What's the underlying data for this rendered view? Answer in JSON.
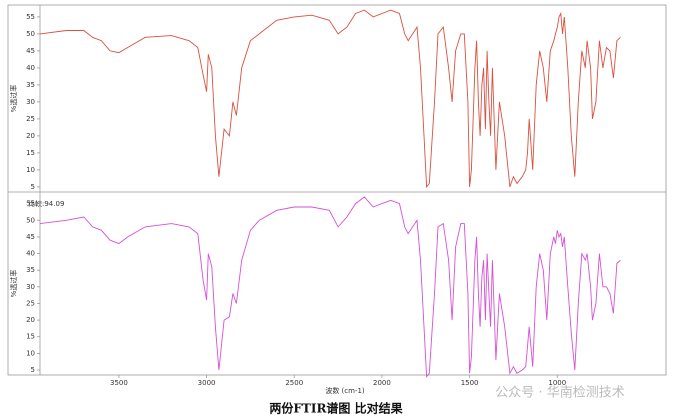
{
  "chart_data": [
    {
      "type": "line",
      "ylabel": "%透过率",
      "x": [
        3950,
        3800,
        3700,
        3650,
        3600,
        3550,
        3500,
        3450,
        3350,
        3200,
        3100,
        3050,
        3020,
        3000,
        2990,
        2970,
        2950,
        2930,
        2900,
        2870,
        2850,
        2830,
        2800,
        2750,
        2700,
        2600,
        2500,
        2400,
        2300,
        2250,
        2200,
        2150,
        2100,
        2050,
        2000,
        1950,
        1900,
        1870,
        1850,
        1800,
        1780,
        1760,
        1745,
        1730,
        1700,
        1680,
        1650,
        1620,
        1600,
        1580,
        1550,
        1530,
        1510,
        1500,
        1490,
        1470,
        1460,
        1450,
        1440,
        1430,
        1420,
        1410,
        1400,
        1390,
        1380,
        1370,
        1350,
        1330,
        1300,
        1270,
        1250,
        1230,
        1200,
        1180,
        1170,
        1160,
        1140,
        1120,
        1100,
        1080,
        1060,
        1040,
        1020,
        1010,
        1000,
        990,
        980,
        970,
        960,
        940,
        920,
        900,
        880,
        860,
        840,
        830,
        810,
        800,
        780,
        760,
        740,
        720,
        700,
        680,
        660,
        640
      ],
      "series": [
        {
          "color": "#d9503f",
          "values": [
            50,
            51,
            51,
            49,
            48,
            45,
            44.5,
            46,
            49,
            49.5,
            48,
            46,
            38,
            33,
            44,
            40,
            20,
            8,
            22,
            20,
            30,
            26,
            40,
            48,
            50,
            54,
            55,
            55.5,
            54,
            50,
            52,
            56,
            57,
            55,
            56,
            57,
            56,
            50,
            48,
            52,
            40,
            20,
            5,
            6,
            30,
            50,
            52,
            40,
            30,
            45,
            50,
            50,
            30,
            5,
            10,
            40,
            48,
            30,
            20,
            35,
            40,
            22,
            45,
            30,
            20,
            40,
            10,
            30,
            20,
            5,
            8,
            6,
            8,
            10,
            15,
            25,
            10,
            35,
            45,
            40,
            30,
            45,
            48,
            50,
            52,
            55,
            56,
            50,
            55,
            40,
            20,
            8,
            30,
            45,
            40,
            48,
            40,
            25,
            30,
            48,
            40,
            46,
            45,
            37,
            48,
            49
          ]
        }
      ],
      "ylim": [
        3.5,
        58.5
      ],
      "yticks": [
        5,
        10,
        15,
        20,
        25,
        30,
        35,
        40,
        45,
        50,
        55
      ],
      "xlim": [
        3950,
        380
      ]
    },
    {
      "type": "line",
      "ylabel": "%透过率",
      "annotation": "比較:94.09",
      "xlabel": "波数 (cm-1)",
      "x": [
        3950,
        3800,
        3700,
        3650,
        3600,
        3550,
        3500,
        3450,
        3350,
        3200,
        3100,
        3050,
        3020,
        3000,
        2990,
        2970,
        2950,
        2930,
        2900,
        2870,
        2850,
        2830,
        2800,
        2750,
        2700,
        2600,
        2500,
        2400,
        2300,
        2250,
        2200,
        2150,
        2100,
        2050,
        2000,
        1950,
        1900,
        1870,
        1850,
        1800,
        1780,
        1760,
        1745,
        1730,
        1700,
        1680,
        1650,
        1620,
        1600,
        1580,
        1550,
        1530,
        1510,
        1500,
        1490,
        1470,
        1460,
        1450,
        1440,
        1430,
        1420,
        1410,
        1400,
        1390,
        1380,
        1370,
        1350,
        1330,
        1300,
        1270,
        1250,
        1230,
        1200,
        1180,
        1170,
        1160,
        1140,
        1120,
        1100,
        1080,
        1060,
        1040,
        1020,
        1010,
        1000,
        990,
        980,
        970,
        960,
        940,
        920,
        900,
        880,
        860,
        840,
        830,
        810,
        800,
        780,
        760,
        740,
        720,
        700,
        680,
        660,
        640
      ],
      "series": [
        {
          "color": "#d650d8",
          "values": [
            49,
            50,
            51,
            48,
            47,
            44,
            43,
            45,
            48,
            49,
            48,
            46,
            32,
            26,
            40,
            36,
            18,
            5,
            20,
            21,
            28,
            25,
            38,
            47,
            50,
            53,
            54,
            54,
            53,
            48,
            51,
            55,
            57,
            54,
            55,
            56,
            55,
            48,
            46,
            50,
            38,
            18,
            3,
            4,
            28,
            48,
            49,
            38,
            20,
            42,
            49,
            49,
            28,
            4,
            9,
            38,
            45,
            28,
            18,
            33,
            38,
            20,
            40,
            28,
            18,
            38,
            8,
            28,
            18,
            4,
            6,
            4,
            5,
            6,
            12,
            18,
            6,
            30,
            40,
            35,
            20,
            40,
            45,
            43,
            47,
            45,
            46,
            42,
            45,
            30,
            16,
            5,
            25,
            40,
            38,
            40,
            30,
            20,
            25,
            40,
            30,
            30,
            28,
            22,
            37,
            38
          ]
        }
      ],
      "ylim": [
        3.5,
        58.5
      ],
      "yticks": [
        5,
        10,
        15,
        20,
        25,
        30,
        35,
        40,
        45,
        50,
        55
      ],
      "xlim": [
        3950,
        380
      ],
      "xticks": [
        3500,
        3000,
        2500,
        2000,
        1500,
        1000
      ]
    }
  ],
  "caption": "两份FTIR谱图 比对结果",
  "watermark": "公众号 · 华南检测技术"
}
